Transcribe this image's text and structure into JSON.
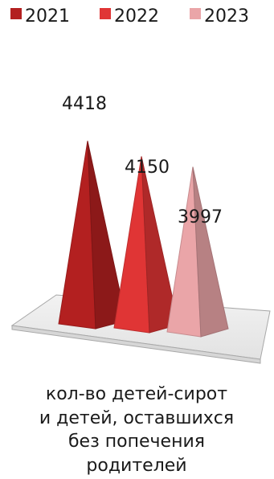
{
  "chart_data": {
    "type": "bar",
    "style": "3d-pyramid",
    "categories": [
      "кол-во детей-сирот и детей, оставшихся без попечения родителей"
    ],
    "category_label_lines": [
      "кол-во детей-сирот",
      "и детей, оставшихся",
      "без попечения",
      "родителей"
    ],
    "series": [
      {
        "name": "2021",
        "values": [
          4418
        ],
        "label": "4418",
        "color": "#b32020"
      },
      {
        "name": "2022",
        "values": [
          4150
        ],
        "label": "4150",
        "color": "#e03535"
      },
      {
        "name": "2023",
        "values": [
          3997
        ],
        "label": "3997",
        "color": "#eaa5a8"
      }
    ],
    "legend_position": "top",
    "grid": false,
    "ylim": [
      0,
      5200
    ]
  }
}
